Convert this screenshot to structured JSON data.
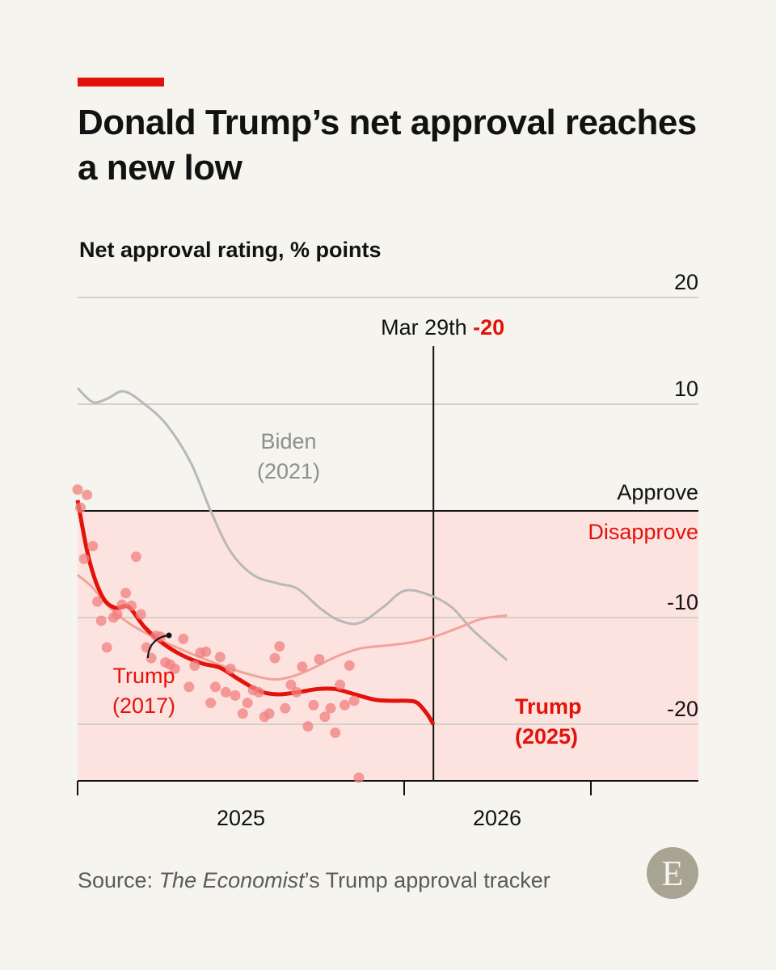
{
  "header": {
    "title": "Donald Trump’s net approval reaches a new low",
    "subtitle": "Net approval rating, % points"
  },
  "footer": {
    "source_prefix": "Source: ",
    "source_italic": "The Economist",
    "source_suffix": "’s Trump approval tracker",
    "logo_letter": "E"
  },
  "colors": {
    "accent": "#e3120b",
    "trump_2025": "#e3120b",
    "trump_2017": "#f1a29a",
    "biden": "#b8b8b8",
    "disapprove_fill": "#fde3df",
    "polls": "#f08080"
  },
  "chart_data": {
    "type": "line",
    "ylabel": "Net approval rating, % points",
    "ylim": [
      -25,
      20
    ],
    "y_ticks": [
      20,
      10,
      -10,
      -20
    ],
    "x_ticks": [
      "2025",
      "2026"
    ],
    "zones": {
      "above": "Approve",
      "below": "Disapprove"
    },
    "annotation": {
      "date": "Mar 29th",
      "value": "-20"
    },
    "series": [
      {
        "name": "Biden (2021)",
        "label_lines": [
          "Biden",
          "(2021)"
        ],
        "x": [
          "2025-01-20",
          "2025-02-05",
          "2025-02-20",
          "2025-03-10",
          "2025-04-01",
          "2025-04-25",
          "2025-05-20",
          "2025-06-10",
          "2025-07-01",
          "2025-07-25",
          "2025-08-20",
          "2025-09-10",
          "2025-10-05",
          "2025-10-25",
          "2025-11-15",
          "2025-12-10",
          "2026-01-01",
          "2026-01-25",
          "2026-02-20",
          "2026-03-15",
          "2026-04-20"
        ],
        "values": [
          11.5,
          10.2,
          10.5,
          11.2,
          10.0,
          8.0,
          4.5,
          0.0,
          -3.8,
          -6.0,
          -6.8,
          -7.3,
          -9.2,
          -10.3,
          -10.5,
          -9.0,
          -7.5,
          -7.8,
          -9.0,
          -11.2,
          -14.0
        ]
      },
      {
        "name": "Trump (2017)",
        "label_lines": [
          "Trump",
          "(2017)"
        ],
        "x": [
          "2025-01-20",
          "2025-02-05",
          "2025-02-20",
          "2025-03-15",
          "2025-04-10",
          "2025-05-05",
          "2025-06-01",
          "2025-06-25",
          "2025-07-20",
          "2025-08-15",
          "2025-09-05",
          "2025-09-25",
          "2025-10-20",
          "2025-11-15",
          "2025-12-15",
          "2026-01-10",
          "2026-02-05",
          "2026-03-01",
          "2026-03-25",
          "2026-04-20"
        ],
        "values": [
          -6.0,
          -7.2,
          -8.8,
          -10.5,
          -11.8,
          -12.8,
          -13.8,
          -14.6,
          -15.3,
          -15.8,
          -15.5,
          -14.8,
          -13.7,
          -12.9,
          -12.6,
          -12.3,
          -11.7,
          -10.9,
          -10.1,
          -9.8
        ]
      },
      {
        "name": "Trump (2025)",
        "label_lines": [
          "Trump",
          "(2025)"
        ],
        "x": [
          "2025-01-20",
          "2025-02-01",
          "2025-02-15",
          "2025-03-01",
          "2025-03-15",
          "2025-04-01",
          "2025-04-20",
          "2025-05-10",
          "2025-06-01",
          "2025-06-20",
          "2025-07-10",
          "2025-08-01",
          "2025-08-20",
          "2025-09-10",
          "2025-10-01",
          "2025-10-20",
          "2025-11-10",
          "2025-12-01",
          "2025-12-20",
          "2026-01-05",
          "2026-01-15",
          "2026-01-25",
          "2026-02-01"
        ],
        "values": [
          1.0,
          -4.5,
          -8.0,
          -9.1,
          -9.0,
          -10.9,
          -12.4,
          -13.5,
          -14.3,
          -14.7,
          -15.8,
          -16.9,
          -17.2,
          -17.0,
          -16.7,
          -16.7,
          -17.2,
          -17.7,
          -17.8,
          -17.8,
          -18.0,
          -19.0,
          -20.0
        ]
      },
      {
        "name": "Polls",
        "type": "scatter",
        "points": [
          [
            "2025-01-20",
            2.0
          ],
          [
            "2025-01-23",
            0.3
          ],
          [
            "2025-01-27",
            -4.5
          ],
          [
            "2025-01-30",
            1.5
          ],
          [
            "2025-02-05",
            -3.3
          ],
          [
            "2025-02-10",
            -8.5
          ],
          [
            "2025-02-14",
            -10.3
          ],
          [
            "2025-02-20",
            -12.8
          ],
          [
            "2025-02-27",
            -10.0
          ],
          [
            "2025-03-03",
            -9.7
          ],
          [
            "2025-03-08",
            -8.8
          ],
          [
            "2025-03-12",
            -7.7
          ],
          [
            "2025-03-18",
            -8.9
          ],
          [
            "2025-03-23",
            -4.3
          ],
          [
            "2025-03-28",
            -9.7
          ],
          [
            "2025-04-03",
            -12.8
          ],
          [
            "2025-04-08",
            -13.8
          ],
          [
            "2025-04-13",
            -11.7
          ],
          [
            "2025-04-18",
            -11.8
          ],
          [
            "2025-04-23",
            -14.2
          ],
          [
            "2025-04-28",
            -14.4
          ],
          [
            "2025-05-03",
            -14.8
          ],
          [
            "2025-05-12",
            -12.0
          ],
          [
            "2025-05-18",
            -16.5
          ],
          [
            "2025-05-24",
            -14.5
          ],
          [
            "2025-05-30",
            -13.3
          ],
          [
            "2025-06-05",
            -13.2
          ],
          [
            "2025-06-10",
            -18.0
          ],
          [
            "2025-06-15",
            -16.5
          ],
          [
            "2025-06-20",
            -13.7
          ],
          [
            "2025-06-26",
            -17.0
          ],
          [
            "2025-07-01",
            -14.8
          ],
          [
            "2025-07-06",
            -17.3
          ],
          [
            "2025-07-14",
            -19.0
          ],
          [
            "2025-07-19",
            -18.0
          ],
          [
            "2025-07-25",
            -16.8
          ],
          [
            "2025-07-31",
            -17.0
          ],
          [
            "2025-08-06",
            -19.3
          ],
          [
            "2025-08-11",
            -19.0
          ],
          [
            "2025-08-17",
            -13.8
          ],
          [
            "2025-08-22",
            -12.7
          ],
          [
            "2025-08-28",
            -18.5
          ],
          [
            "2025-09-03",
            -16.3
          ],
          [
            "2025-09-09",
            -17.0
          ],
          [
            "2025-09-15",
            -14.6
          ],
          [
            "2025-09-21",
            -20.2
          ],
          [
            "2025-09-27",
            -18.2
          ],
          [
            "2025-10-03",
            -13.9
          ],
          [
            "2025-10-09",
            -19.3
          ],
          [
            "2025-10-15",
            -18.5
          ],
          [
            "2025-10-20",
            -20.8
          ],
          [
            "2025-10-25",
            -16.3
          ],
          [
            "2025-10-30",
            -18.2
          ],
          [
            "2025-11-04",
            -14.5
          ],
          [
            "2025-11-09",
            -17.8
          ],
          [
            "2025-11-14",
            -25.0
          ]
        ]
      }
    ]
  }
}
